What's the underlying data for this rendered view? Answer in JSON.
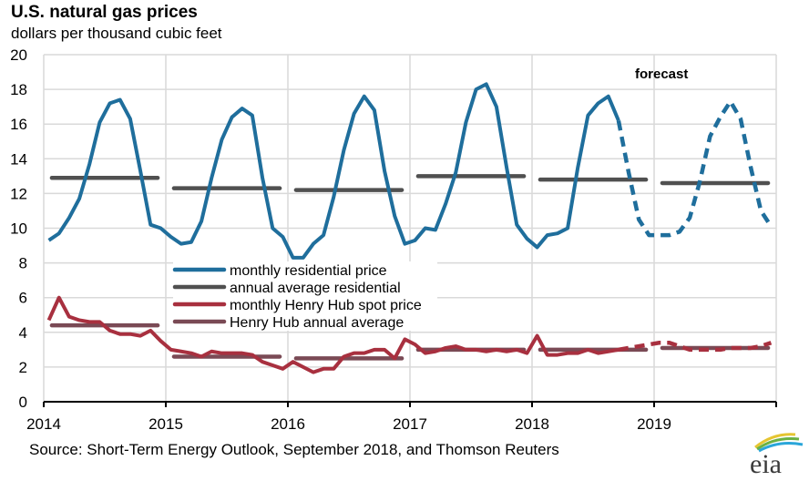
{
  "chart_data": {
    "type": "line",
    "title": "U.S. natural gas prices",
    "subtitle": "dollars per thousand cubic feet",
    "source": "Source: Short-Term Energy Outlook, September 2018, and Thomson Reuters",
    "xlabel": "",
    "ylabel": "dollars per thousand cubic feet",
    "ylim": [
      0,
      20
    ],
    "yticks": [
      "0",
      "2",
      "4",
      "6",
      "8",
      "10",
      "12",
      "14",
      "16",
      "18",
      "20"
    ],
    "x_start": "2014-01",
    "x_end": "2019-12",
    "xticks": [
      "2014",
      "2015",
      "2016",
      "2017",
      "2018",
      "2019"
    ],
    "grid": true,
    "forecast_start_month_index": 56,
    "annotation": "forecast",
    "legend_position": "center-left",
    "series": [
      {
        "name": "monthly residential price",
        "color": "#1f6e9c",
        "style": "monthly",
        "values": [
          9.3,
          9.7,
          10.6,
          11.7,
          13.7,
          16.1,
          17.2,
          17.4,
          16.3,
          13.3,
          10.2,
          10.0,
          9.5,
          9.1,
          9.2,
          10.4,
          12.9,
          15.1,
          16.4,
          16.9,
          16.5,
          12.9,
          10.0,
          9.5,
          8.3,
          8.3,
          9.1,
          9.6,
          11.8,
          14.5,
          16.6,
          17.6,
          16.8,
          13.3,
          10.7,
          9.1,
          9.3,
          10.0,
          9.9,
          11.4,
          13.2,
          16.1,
          18.0,
          18.3,
          17.0,
          13.5,
          10.2,
          9.4,
          8.9,
          9.6,
          9.7,
          10.0,
          13.5,
          16.5,
          17.2,
          17.6,
          16.2,
          13.2,
          10.5,
          9.6,
          9.6,
          9.6,
          9.8,
          10.6,
          12.7,
          15.3,
          16.4,
          17.3,
          16.3,
          13.5,
          11.0,
          10.1
        ]
      },
      {
        "name": "annual average residential",
        "color": "#505050",
        "style": "annual",
        "values": [
          12.9,
          12.3,
          12.2,
          13.0,
          12.8,
          12.6
        ]
      },
      {
        "name": "monthly Henry Hub spot price",
        "color": "#a8303f",
        "style": "monthly",
        "values": [
          4.7,
          6.0,
          4.9,
          4.7,
          4.6,
          4.6,
          4.1,
          3.9,
          3.9,
          3.8,
          4.1,
          3.5,
          3.0,
          2.9,
          2.8,
          2.6,
          2.9,
          2.8,
          2.8,
          2.8,
          2.7,
          2.3,
          2.1,
          1.9,
          2.3,
          2.0,
          1.7,
          1.9,
          1.9,
          2.6,
          2.8,
          2.8,
          3.0,
          3.0,
          2.5,
          3.6,
          3.3,
          2.8,
          2.9,
          3.1,
          3.2,
          3.0,
          3.0,
          2.9,
          3.0,
          2.9,
          3.0,
          2.8,
          3.8,
          2.7,
          2.7,
          2.8,
          2.8,
          3.0,
          2.8,
          2.9,
          3.0,
          3.1,
          3.2,
          3.3,
          3.4,
          3.4,
          3.2,
          3.0,
          3.0,
          3.0,
          3.0,
          3.1,
          3.1,
          3.1,
          3.2,
          3.4
        ]
      },
      {
        "name": "Henry Hub annual average",
        "color": "#7a4a55",
        "style": "annual",
        "values": [
          4.4,
          2.6,
          2.5,
          3.0,
          3.0,
          3.1
        ]
      }
    ]
  },
  "logo": {
    "text": "eia"
  }
}
